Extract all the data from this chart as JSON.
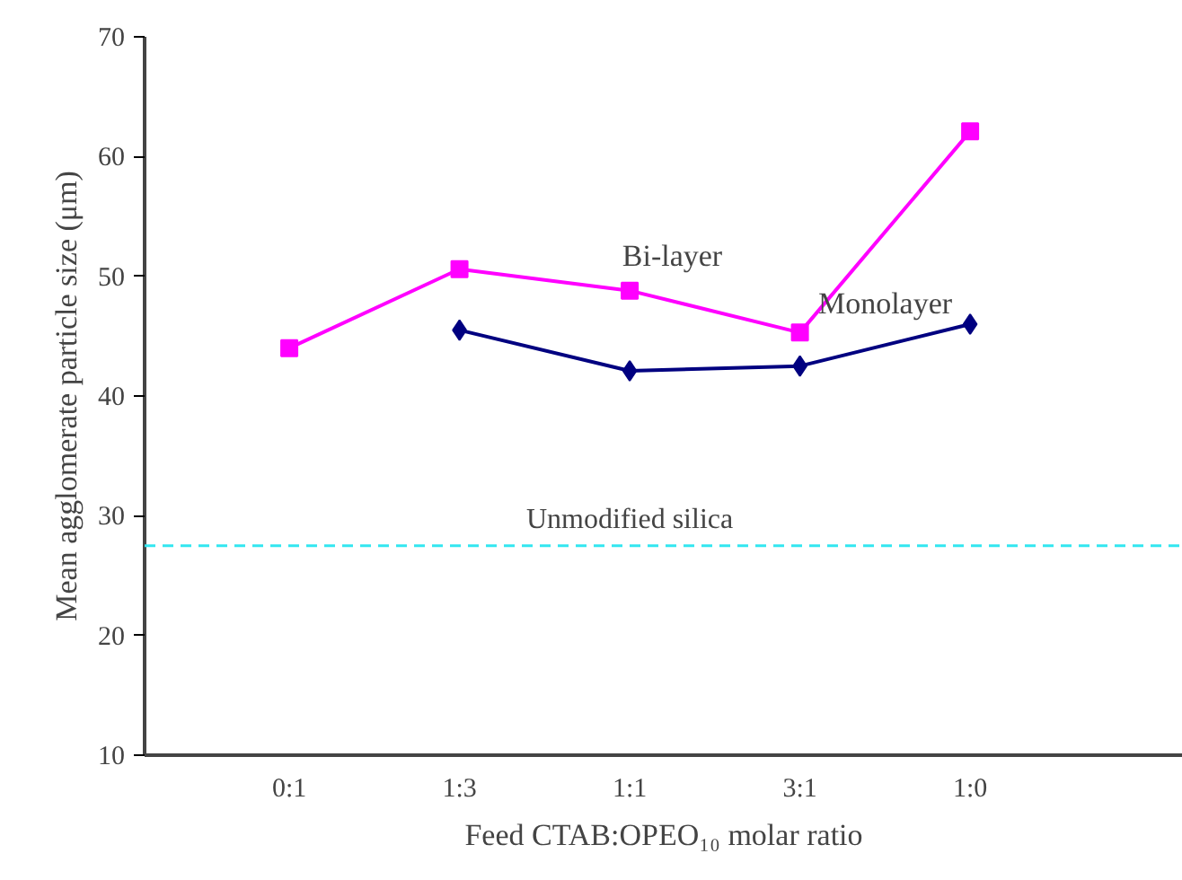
{
  "chart_data": {
    "type": "line",
    "xlabel": "Feed CTAB:OPEO₁₀ molar ratio",
    "ylabel": "Mean agglomerate particle size (μm)",
    "categories": [
      "0:1",
      "1:3",
      "1:1",
      "3:1",
      "1:0"
    ],
    "series": [
      {
        "name": "Bi-layer",
        "color": "#ff00ff",
        "marker": "square",
        "values": [
          44.0,
          50.6,
          48.8,
          45.3,
          62.1
        ]
      },
      {
        "name": "Monolayer",
        "color": "#000080",
        "marker": "diamond",
        "values": [
          null,
          45.5,
          42.1,
          42.5,
          46.0
        ]
      }
    ],
    "ylim": [
      10,
      70
    ],
    "yticks": [
      10,
      20,
      30,
      40,
      50,
      60,
      70
    ],
    "ref_lines": [
      {
        "axis": "y",
        "value": 27.5,
        "label": "Unmodified silica",
        "color": "#33e6f0",
        "line_style": "dashed"
      }
    ],
    "grid": false,
    "line_style": "solid"
  }
}
